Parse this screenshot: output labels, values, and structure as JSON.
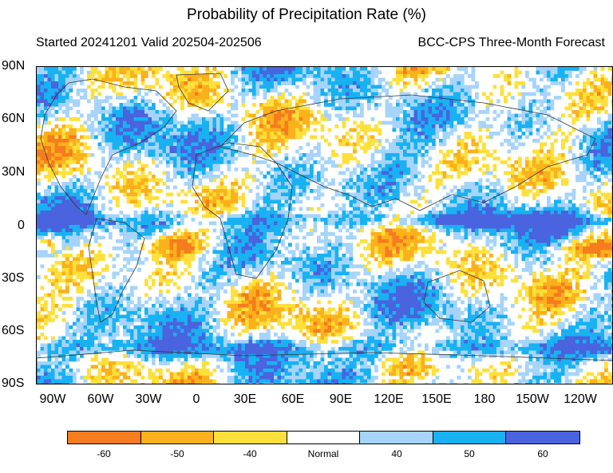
{
  "title": "Probability of Precipitation Rate (%)",
  "subtitle_left": "Started 20241201  Valid 202504-202506",
  "subtitle_right": "BCC-CPS Three-Month Forecast",
  "lat_labels": [
    "90N",
    "60N",
    "30N",
    "0",
    "30S",
    "60S",
    "90S"
  ],
  "lon_labels": [
    "90W",
    "60W",
    "30W",
    "0",
    "30E",
    "60E",
    "90E",
    "120E",
    "150E",
    "180",
    "150W",
    "120W"
  ],
  "legend": {
    "labels": [
      "-60",
      "-50",
      "-40",
      "Normal",
      "40",
      "50",
      "60"
    ],
    "colors": [
      "#f57c1f",
      "#fbb11b",
      "#fde03c",
      "#ffffff",
      "#a6d4fb",
      "#18b2f2",
      "#4a63de"
    ]
  },
  "map_palette": {
    "strong_dry": "#f57c1f",
    "dry": "#fbb11b",
    "weak_dry": "#fde03c",
    "normal": "#ffffff",
    "weak_wet": "#a6d4fb",
    "wet": "#18b2f2",
    "strong_wet": "#4a63de",
    "coastline": "#333333"
  }
}
